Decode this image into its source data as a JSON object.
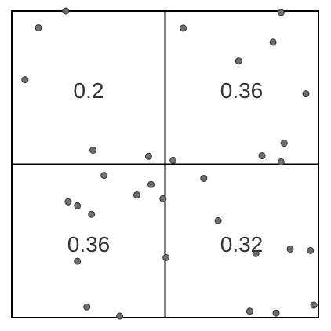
{
  "chart_data": {
    "type": "scatter",
    "title": "",
    "xlabel": "",
    "ylabel": "",
    "xlim": [
      0,
      1
    ],
    "ylim": [
      0,
      1
    ],
    "grid": "2x2 quadrants",
    "point_color": "#6e6e6e",
    "point_stroke": "#333333",
    "line_color": "#000000",
    "quadrant_labels": [
      {
        "quadrant": "top-left",
        "text": "0.2"
      },
      {
        "quadrant": "top-right",
        "text": "0.36"
      },
      {
        "quadrant": "bottom-left",
        "text": "0.36"
      },
      {
        "quadrant": "bottom-right",
        "text": "0.32"
      }
    ],
    "points": [
      {
        "x": 0.087,
        "y": 0.945
      },
      {
        "x": 0.176,
        "y": 1.0
      },
      {
        "x": 0.043,
        "y": 0.776
      },
      {
        "x": 0.265,
        "y": 0.546
      },
      {
        "x": 0.446,
        "y": 0.526
      },
      {
        "x": 0.526,
        "y": 0.513
      },
      {
        "x": 0.559,
        "y": 0.944
      },
      {
        "x": 0.74,
        "y": 0.837
      },
      {
        "x": 0.852,
        "y": 0.898
      },
      {
        "x": 0.878,
        "y": 0.995
      },
      {
        "x": 0.959,
        "y": 0.73
      },
      {
        "x": 0.888,
        "y": 0.569
      },
      {
        "x": 0.816,
        "y": 0.528
      },
      {
        "x": 0.878,
        "y": 0.508
      },
      {
        "x": 0.301,
        "y": 0.464
      },
      {
        "x": 0.454,
        "y": 0.434
      },
      {
        "x": 0.184,
        "y": 0.378
      },
      {
        "x": 0.26,
        "y": 0.337
      },
      {
        "x": 0.408,
        "y": 0.4
      },
      {
        "x": 0.493,
        "y": 0.388
      },
      {
        "x": 0.214,
        "y": 0.365
      },
      {
        "x": 0.626,
        "y": 0.454
      },
      {
        "x": 0.503,
        "y": 0.196
      },
      {
        "x": 0.214,
        "y": 0.184
      },
      {
        "x": 0.245,
        "y": 0.035
      },
      {
        "x": 0.352,
        "y": 0.005
      },
      {
        "x": 0.673,
        "y": 0.316
      },
      {
        "x": 0.796,
        "y": 0.209
      },
      {
        "x": 0.908,
        "y": 0.224
      },
      {
        "x": 0.974,
        "y": 0.219
      },
      {
        "x": 0.776,
        "y": 0.021
      },
      {
        "x": 0.862,
        "y": 0.015
      },
      {
        "x": 0.985,
        "y": 0.041
      }
    ]
  }
}
